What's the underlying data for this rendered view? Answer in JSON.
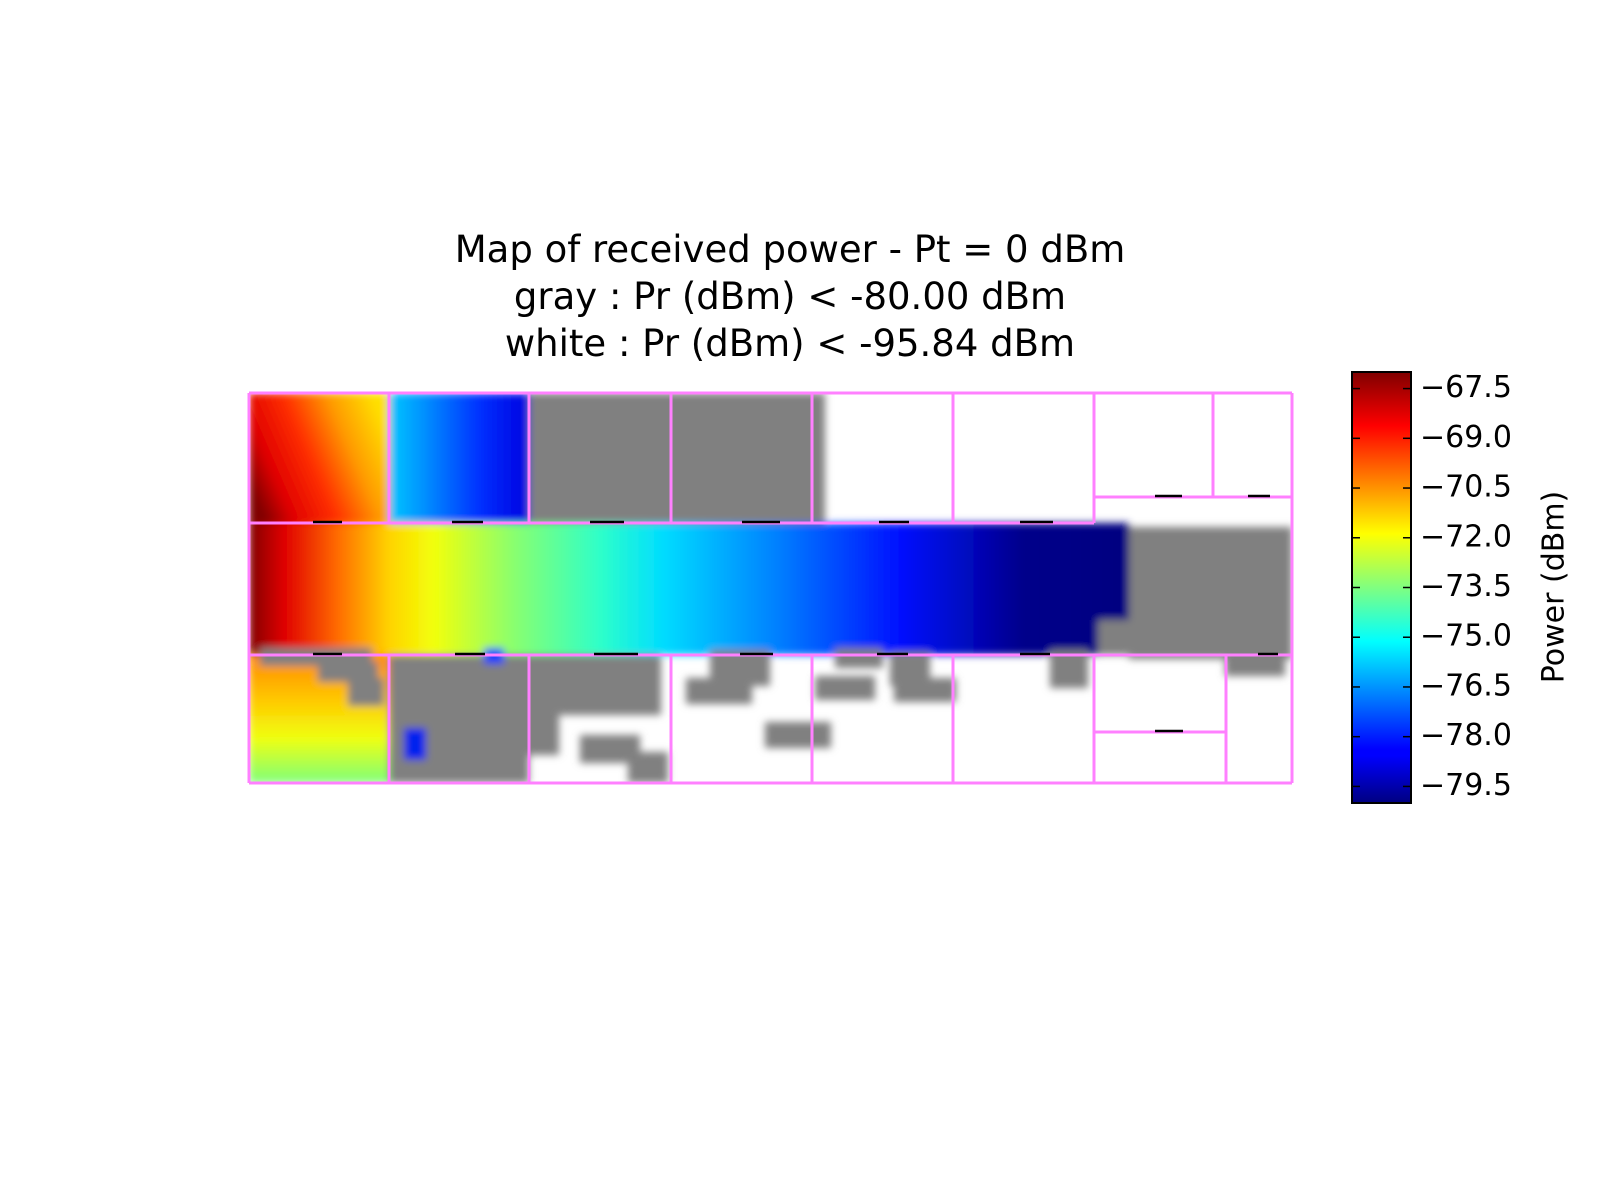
{
  "chart_data": {
    "type": "heatmap",
    "title": [
      "Map of received power - Pt = 0 dBm",
      "gray : Pr (dBm) < -80.00 dBm",
      "white : Pr (dBm) < -95.84 dBm"
    ],
    "colorbar": {
      "label": "Power (dBm)",
      "range": [
        -80.0,
        -67.0
      ],
      "ticks": [
        -67.5,
        -69.0,
        -70.5,
        -72.0,
        -73.5,
        -75.0,
        -76.5,
        -78.0,
        -79.5
      ],
      "tick_labels": [
        "−67.5",
        "−69.0",
        "−70.5",
        "−72.0",
        "−73.5",
        "−75.0",
        "−76.5",
        "−78.0",
        "−79.5"
      ],
      "colormap": "jet"
    },
    "thresholds": {
      "gray_below_dBm": -80.0,
      "white_below_dBm": -95.84
    },
    "colors": {
      "walls": "#ff80ff",
      "doors": "#000000",
      "gray_region": "#808080",
      "white_region": "#ffffff"
    },
    "axes_visible": false,
    "grid": false,
    "colorbar_placement": "right"
  }
}
